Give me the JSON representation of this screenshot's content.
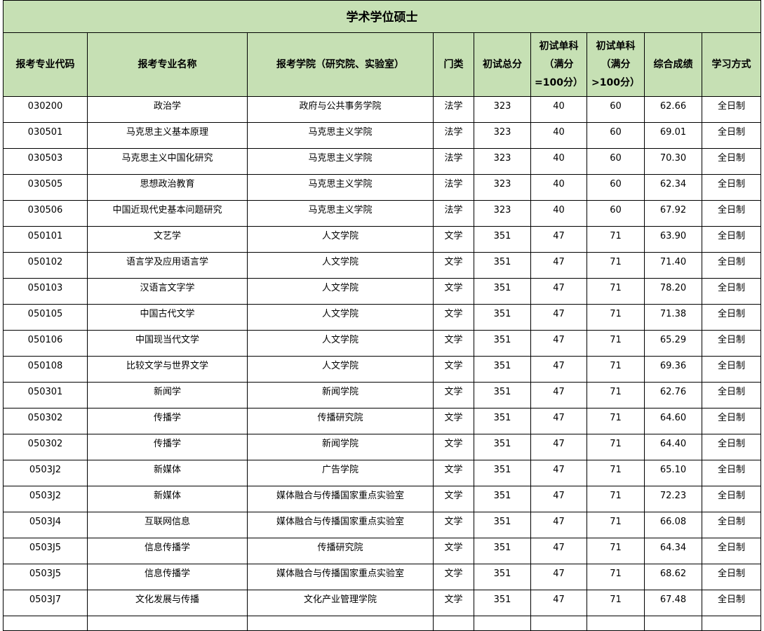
{
  "title": "学术学位硕士",
  "headers": [
    "报考专业代码",
    "报考专业名称",
    "报考学院（研究院、实验室）",
    "门类",
    "初试总分",
    "初试单科（满分=100分）",
    "初试单科（满分>100分）",
    "综合成绩",
    "学习方式"
  ],
  "rows": [
    [
      "030200",
      "政治学",
      "政府与公共事务学院",
      "法学",
      "323",
      "40",
      "60",
      "62.66",
      "全日制"
    ],
    [
      "030501",
      "马克思主义基本原理",
      "马克思主义学院",
      "法学",
      "323",
      "40",
      "60",
      "69.01",
      "全日制"
    ],
    [
      "030503",
      "马克思主义中国化研究",
      "马克思主义学院",
      "法学",
      "323",
      "40",
      "60",
      "70.30",
      "全日制"
    ],
    [
      "030505",
      "思想政治教育",
      "马克思主义学院",
      "法学",
      "323",
      "40",
      "60",
      "62.34",
      "全日制"
    ],
    [
      "030506",
      "中国近现代史基本问题研究",
      "马克思主义学院",
      "法学",
      "323",
      "40",
      "60",
      "67.92",
      "全日制"
    ],
    [
      "050101",
      "文艺学",
      "人文学院",
      "文学",
      "351",
      "47",
      "71",
      "63.90",
      "全日制"
    ],
    [
      "050102",
      "语言学及应用语言学",
      "人文学院",
      "文学",
      "351",
      "47",
      "71",
      "71.40",
      "全日制"
    ],
    [
      "050103",
      "汉语言文字学",
      "人文学院",
      "文学",
      "351",
      "47",
      "71",
      "78.20",
      "全日制"
    ],
    [
      "050105",
      "中国古代文学",
      "人文学院",
      "文学",
      "351",
      "47",
      "71",
      "71.38",
      "全日制"
    ],
    [
      "050106",
      "中国现当代文学",
      "人文学院",
      "文学",
      "351",
      "47",
      "71",
      "65.29",
      "全日制"
    ],
    [
      "050108",
      "比较文学与世界文学",
      "人文学院",
      "文学",
      "351",
      "47",
      "71",
      "69.36",
      "全日制"
    ],
    [
      "050301",
      "新闻学",
      "新闻学院",
      "文学",
      "351",
      "47",
      "71",
      "62.76",
      "全日制"
    ],
    [
      "050302",
      "传播学",
      "传播研究院",
      "文学",
      "351",
      "47",
      "71",
      "64.60",
      "全日制"
    ],
    [
      "050302",
      "传播学",
      "新闻学院",
      "文学",
      "351",
      "47",
      "71",
      "64.40",
      "全日制"
    ],
    [
      "0503J2",
      "新媒体",
      "广告学院",
      "文学",
      "351",
      "47",
      "71",
      "65.10",
      "全日制"
    ],
    [
      "0503J2",
      "新媒体",
      "媒体融合与传播国家重点实验室",
      "文学",
      "351",
      "47",
      "71",
      "72.23",
      "全日制"
    ],
    [
      "0503J4",
      "互联网信息",
      "媒体融合与传播国家重点实验室",
      "文学",
      "351",
      "47",
      "71",
      "66.08",
      "全日制"
    ],
    [
      "0503J5",
      "信息传播学",
      "传播研究院",
      "文学",
      "351",
      "47",
      "71",
      "64.34",
      "全日制"
    ],
    [
      "0503J5",
      "信息传播学",
      "媒体融合与传播国家重点实验室",
      "文学",
      "351",
      "47",
      "71",
      "68.62",
      "全日制"
    ],
    [
      "0503J7",
      "文化发展与传播",
      "文化产业管理学院",
      "文学",
      "351",
      "47",
      "71",
      "67.48",
      "全日制"
    ]
  ]
}
